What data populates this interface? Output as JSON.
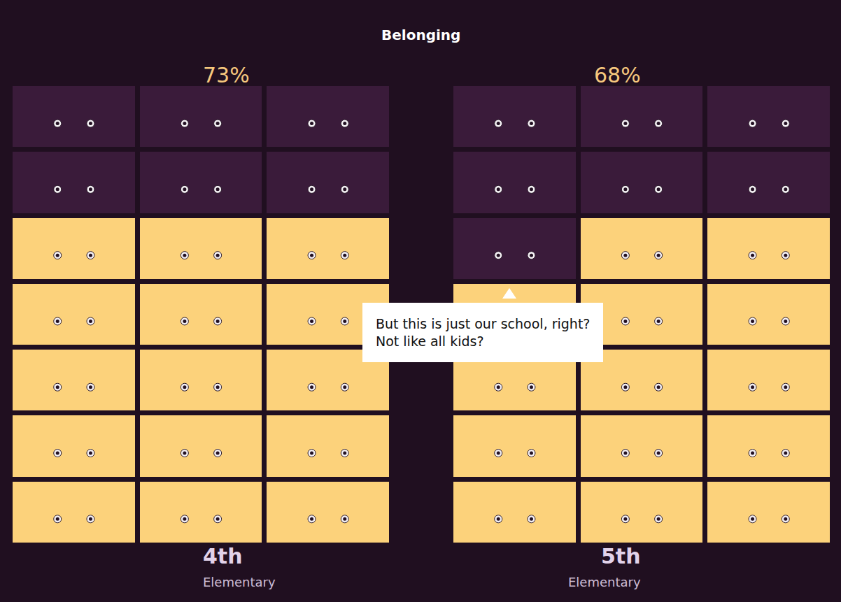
{
  "chart_data": {
    "type": "unit",
    "title": "Belonging",
    "categories": [
      "4th",
      "5th"
    ],
    "subtitles": [
      "Elementary",
      "Elementary"
    ],
    "values": [
      73,
      68
    ],
    "value_labels": [
      "73%",
      "68%"
    ],
    "highlighted": [
      15,
      14
    ],
    "total": 21,
    "color": "#fcd27b",
    "annotation": [
      "But this is just our school, right?",
      "Not like all kids?"
    ]
  }
}
